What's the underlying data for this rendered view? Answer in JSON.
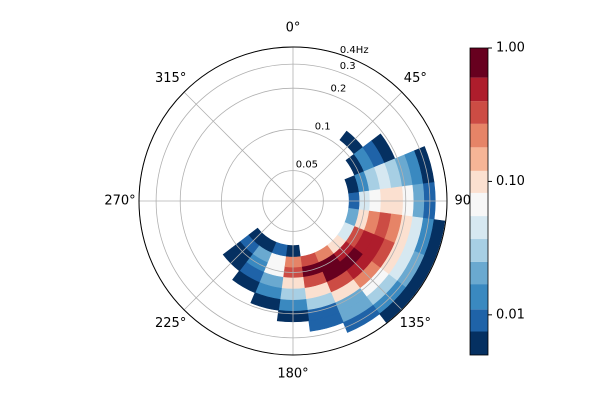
{
  "chart_data": {
    "type": "polar-contour",
    "rscale": "log",
    "rlim": [
      0.03,
      0.4
    ],
    "r_ticks": [
      0.05,
      0.1,
      0.2,
      0.3,
      {
        "value": 0.4,
        "label": "0.4Hz"
      }
    ],
    "theta_ticks": [
      {
        "value": 0,
        "label": "0°"
      },
      {
        "value": 45,
        "label": "45°"
      },
      {
        "value": 90,
        "label": "90°"
      },
      {
        "value": 135,
        "label": "135°"
      },
      {
        "value": 180,
        "label": "180°"
      },
      {
        "value": 225,
        "label": "225°"
      },
      {
        "value": 270,
        "label": "270°"
      },
      {
        "value": 315,
        "label": "315°"
      }
    ],
    "grid": true,
    "theta": [
      30,
      45,
      60,
      75,
      90,
      105,
      120,
      135,
      150,
      165,
      180,
      195,
      210,
      225,
      240
    ],
    "freq": [
      0.07,
      0.085,
      0.1,
      0.12,
      0.145,
      0.175,
      0.21,
      0.25,
      0.3,
      0.36
    ],
    "z": [
      [
        null,
        null,
        null,
        null,
        null,
        null,
        null,
        null,
        null,
        null,
        0.006,
        0.008,
        0.007,
        0.005,
        null
      ],
      [
        null,
        null,
        null,
        0.006,
        0.01,
        0.02,
        0.05,
        0.1,
        0.2,
        0.3,
        0.25,
        0.08,
        0.02,
        0.008,
        null
      ],
      [
        null,
        null,
        0.006,
        0.015,
        0.04,
        0.1,
        0.3,
        0.6,
        0.9,
        0.8,
        0.3,
        0.06,
        0.015,
        0.007,
        null
      ],
      [
        null,
        0.006,
        0.012,
        0.03,
        0.08,
        0.25,
        0.6,
        1.0,
        0.8,
        0.4,
        0.1,
        0.025,
        0.01,
        0.006,
        null
      ],
      [
        null,
        null,
        0.008,
        0.04,
        0.12,
        0.35,
        0.6,
        0.6,
        0.35,
        0.12,
        0.035,
        0.012,
        0.007,
        null,
        null
      ],
      [
        null,
        null,
        0.006,
        0.03,
        0.12,
        0.25,
        0.3,
        0.22,
        0.1,
        0.035,
        0.013,
        0.007,
        null,
        null,
        null
      ],
      [
        null,
        null,
        null,
        0.02,
        0.08,
        0.12,
        0.1,
        0.06,
        0.025,
        0.01,
        0.006,
        null,
        null,
        null,
        null
      ],
      [
        null,
        null,
        null,
        0.012,
        0.025,
        0.04,
        0.045,
        0.035,
        0.02,
        0.009,
        null,
        null,
        null,
        null,
        null
      ],
      [
        null,
        null,
        null,
        0.006,
        0.01,
        0.016,
        0.018,
        0.014,
        0.008,
        null,
        null,
        null,
        null,
        null,
        null
      ],
      [
        null,
        null,
        null,
        null,
        null,
        0.006,
        0.007,
        0.006,
        null,
        null,
        null,
        null,
        null,
        null,
        null
      ]
    ],
    "levels": [
      0.005,
      0.0075,
      0.011,
      0.017,
      0.025,
      0.037,
      0.055,
      0.082,
      0.12,
      0.18,
      0.27,
      0.4,
      0.6,
      1.0
    ],
    "colors": [
      "#053061",
      "#1f63a8",
      "#3a89c0",
      "#6aa9d0",
      "#a7cfe4",
      "#d6e8f1",
      "#f7f7f7",
      "#fbe0d0",
      "#f6b596",
      "#e68467",
      "#cc4c44",
      "#ae1d2c",
      "#67001f"
    ],
    "clim": [
      0.005,
      1.0
    ],
    "colorbar_scale": "log",
    "colorbar_ticks": [
      {
        "value": 0.01,
        "label": "0.01"
      },
      {
        "value": 0.1,
        "label": "0.10"
      },
      {
        "value": 1.0,
        "label": "1.00"
      }
    ]
  }
}
